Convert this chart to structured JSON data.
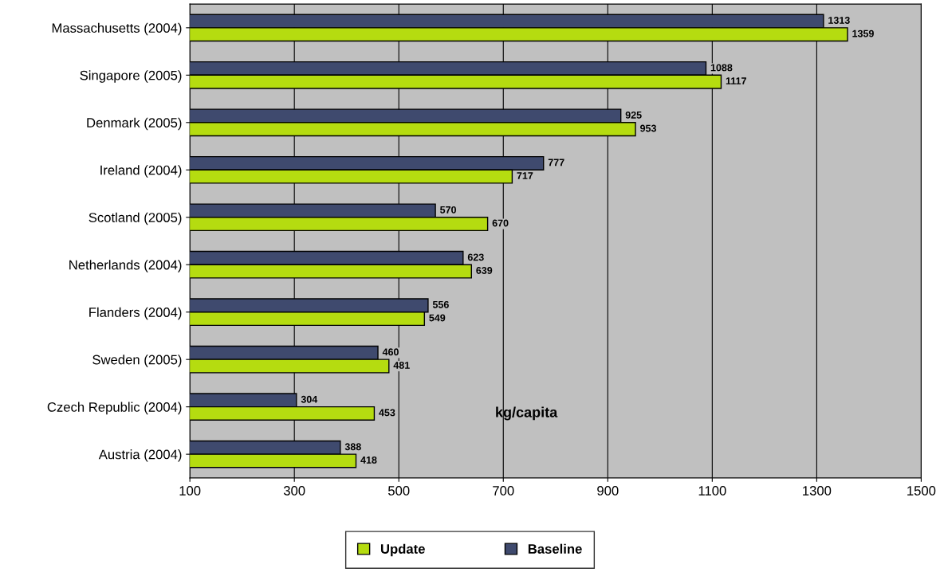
{
  "chart_data": {
    "type": "bar",
    "orientation": "horizontal",
    "categories": [
      "Massachusetts (2004)",
      "Singapore (2005)",
      "Denmark (2005)",
      "Ireland (2004)",
      "Scotland (2005)",
      "Netherlands (2004)",
      "Flanders (2004)",
      "Sweden (2005)",
      "Czech Republic (2004)",
      "Austria (2004)"
    ],
    "series": [
      {
        "name": "Baseline",
        "color": "#3f4a6e",
        "values": [
          1313,
          1088,
          925,
          777,
          570,
          623,
          556,
          460,
          304,
          388
        ]
      },
      {
        "name": "Update",
        "color": "#b5dc10",
        "values": [
          1359,
          1117,
          953,
          717,
          670,
          639,
          549,
          481,
          453,
          418
        ]
      }
    ],
    "xlim": [
      100,
      1500
    ],
    "xticks": [
      100,
      300,
      500,
      700,
      900,
      1100,
      1300,
      1500
    ],
    "grid": "x",
    "legend": "bottom",
    "data_labels": true,
    "annotations": [
      "kg/capita"
    ]
  }
}
